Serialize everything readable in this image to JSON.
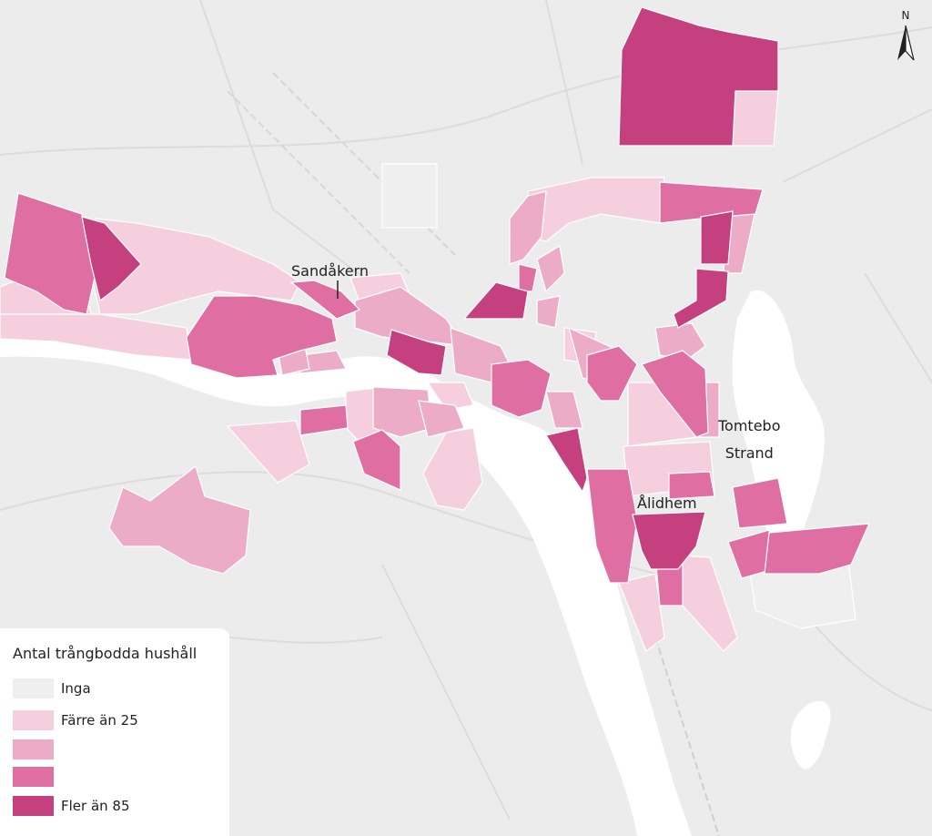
{
  "map": {
    "places": {
      "sandakern": "Sandåkern",
      "tomtebo_line1": "Tomtebo",
      "tomtebo_line2": "Strand",
      "alidhem": "Ålidhem"
    },
    "north_arrow": {
      "letter": "N",
      "icon": "north-arrow-icon"
    },
    "colors": {
      "background": "#ececec",
      "water": "#ffffff",
      "roads": "#dcdcdc"
    }
  },
  "legend": {
    "title": "Antal trångbodda hushåll",
    "items": [
      {
        "label": "Inga",
        "color": "#efefef"
      },
      {
        "label": "Färre än 25",
        "color": "#f5cfdd"
      },
      {
        "label": "",
        "color": "#ecacc8"
      },
      {
        "label": "",
        "color": "#df6fa3"
      },
      {
        "label": "Fler än 85",
        "color": "#c4407f"
      }
    ]
  }
}
